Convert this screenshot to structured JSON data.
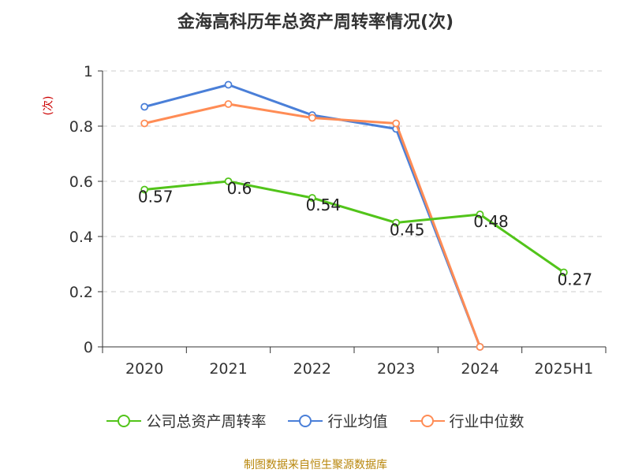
{
  "chart_data": {
    "type": "line",
    "title": "金海高科历年总资产周转率情况(次)",
    "ylabel": "(次)",
    "xlabel": "",
    "categories": [
      "2020",
      "2021",
      "2022",
      "2023",
      "2024",
      "2025H1"
    ],
    "ylim": [
      0,
      1
    ],
    "yticks": [
      "0",
      "0.2",
      "0.4",
      "0.6",
      "0.8",
      "1"
    ],
    "grid": true,
    "legend_position": "bottom",
    "series": [
      {
        "name": "公司总资产周转率",
        "color": "#52c41a",
        "values": [
          0.57,
          0.6,
          0.54,
          0.45,
          0.48,
          0.27
        ],
        "labels": [
          "0.57",
          "0.6",
          "0.54",
          "0.45",
          "0.48",
          "0.27"
        ]
      },
      {
        "name": "行业均值",
        "color": "#4a7fd8",
        "values": [
          0.87,
          0.95,
          0.84,
          0.79,
          0.0,
          null
        ],
        "labels": null
      },
      {
        "name": "行业中位数",
        "color": "#ff8c55",
        "values": [
          0.81,
          0.88,
          0.83,
          0.81,
          0.0,
          null
        ],
        "labels": null
      }
    ],
    "source": "制图数据来自恒生聚源数据库"
  }
}
